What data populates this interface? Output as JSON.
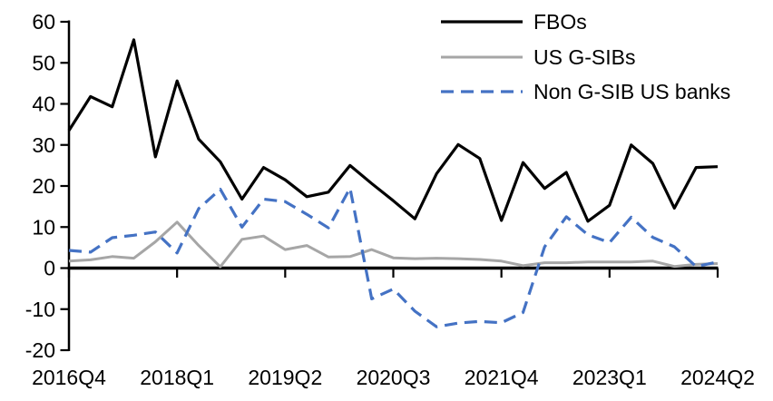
{
  "chart_data": {
    "type": "line",
    "title": "",
    "categories": [
      "2016Q4",
      "2017Q1",
      "2017Q2",
      "2017Q3",
      "2017Q4",
      "2018Q1",
      "2018Q2",
      "2018Q3",
      "2018Q4",
      "2019Q1",
      "2019Q2",
      "2019Q3",
      "2019Q4",
      "2020Q1",
      "2020Q2",
      "2020Q3",
      "2020Q4",
      "2021Q1",
      "2021Q2",
      "2021Q3",
      "2021Q4",
      "2022Q1",
      "2022Q2",
      "2022Q3",
      "2022Q4",
      "2023Q1",
      "2023Q2",
      "2023Q3",
      "2023Q4",
      "2024Q1",
      "2024Q2"
    ],
    "x_tick_labels": [
      "2016Q4",
      "2018Q1",
      "2019Q2",
      "2020Q3",
      "2021Q4",
      "2023Q1",
      "2024Q2"
    ],
    "x_tick_indices": [
      0,
      5,
      10,
      15,
      20,
      25,
      30
    ],
    "y_axis": {
      "min": -20,
      "max": 60,
      "tick_interval": 10,
      "ticks": [
        60,
        50,
        40,
        30,
        20,
        10,
        0,
        -10,
        -20
      ]
    },
    "grid": false,
    "legend_position": "top-right",
    "series": [
      {
        "name": "FBOs",
        "color": "#000000",
        "line_style": "solid",
        "values": [
          33.5,
          41.8,
          39.3,
          55.6,
          27.1,
          45.6,
          31.4,
          25.9,
          16.8,
          24.5,
          21.5,
          17.4,
          18.5,
          25.0,
          20.6,
          16.4,
          12.0,
          23.0,
          30.1,
          26.7,
          11.6,
          25.7,
          19.4,
          23.3,
          11.4,
          15.3,
          30.0,
          25.5,
          14.6,
          24.5,
          24.7
        ]
      },
      {
        "name": "US G-SIBs",
        "color": "#A6A6A6",
        "line_style": "solid",
        "values": [
          1.7,
          2.0,
          2.8,
          2.4,
          6.4,
          11.2,
          5.5,
          0.3,
          7.0,
          7.8,
          4.5,
          5.5,
          2.7,
          2.8,
          4.5,
          2.5,
          2.3,
          2.4,
          2.3,
          2.1,
          1.7,
          0.6,
          1.3,
          1.3,
          1.5,
          1.5,
          1.5,
          1.7,
          0.4,
          0.9,
          1.1
        ]
      },
      {
        "name": "Non G-SIB US banks",
        "color": "#4472C4",
        "line_style": "dashed",
        "values": [
          4.3,
          3.9,
          7.4,
          8.0,
          8.8,
          3.7,
          14.5,
          19.2,
          10.0,
          16.8,
          16.2,
          13.1,
          9.8,
          19.5,
          -7.5,
          -5.1,
          -10.5,
          -14.3,
          -13.4,
          -13.0,
          -13.3,
          -10.8,
          5.2,
          12.5,
          8.1,
          6.2,
          12.4,
          7.5,
          5.2,
          0.4,
          1.5
        ]
      }
    ]
  }
}
